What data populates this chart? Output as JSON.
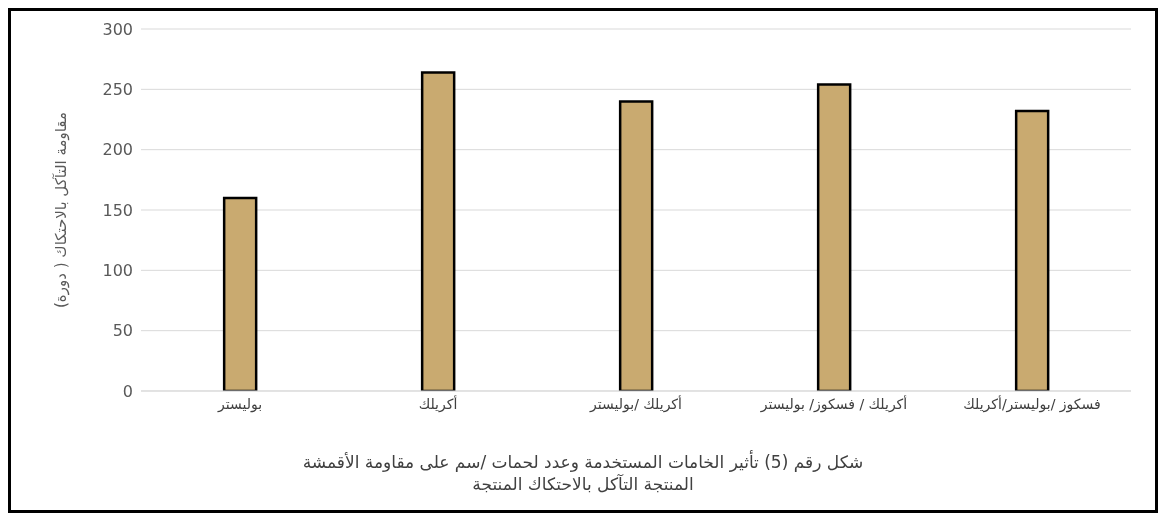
{
  "chart_data": {
    "type": "bar",
    "title": "شكل رقم (5) تأثير الخامات المستخدمة وعدد لحمات /سم على مقاومة الأقمشة المنتجة  التآكل بالاحتكاك المنتجة",
    "ylabel": "مقاومة التآكل بالاحتكاك  ( دورة)",
    "categories": [
      "بوليستر",
      "أكريلك",
      "أكريلك /بوليستر",
      "أكريلك / فسكوز/ بوليستر",
      "فسكوز /بوليستر/أكريلك"
    ],
    "values": [
      160,
      264,
      240,
      254,
      232
    ],
    "color": "#c9aa70",
    "ylim": [
      0,
      300
    ],
    "yticks": [
      0,
      50,
      100,
      150,
      200,
      250,
      300
    ],
    "grid": "y"
  }
}
